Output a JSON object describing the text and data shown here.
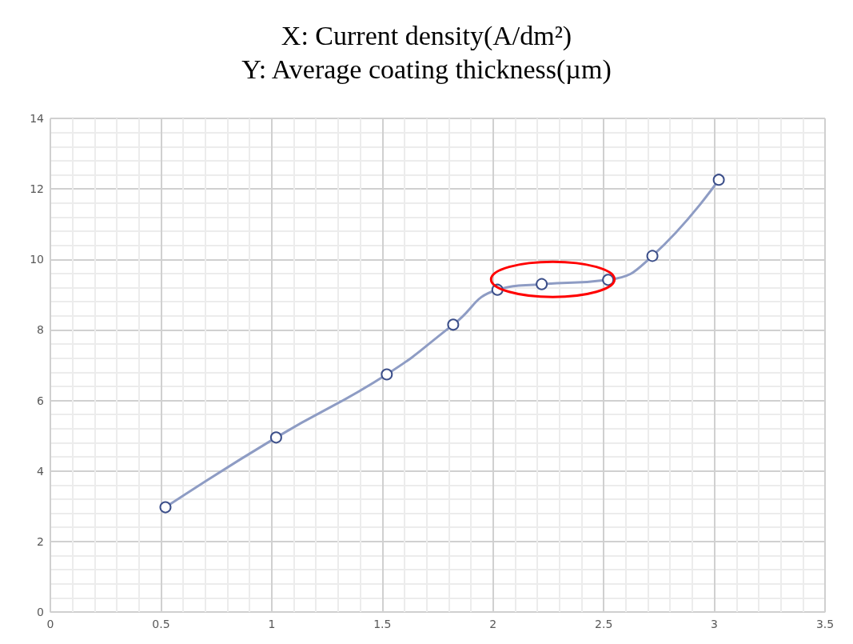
{
  "chart_data": {
    "type": "line",
    "title": "X: Current density(A/dm²)",
    "subtitle": "Y: Average coating thickness(µm)",
    "x": [
      0.52,
      1.02,
      1.52,
      1.82,
      2.02,
      2.22,
      2.52,
      2.72,
      3.02
    ],
    "series": [
      {
        "color": "#8e9cc4",
        "values": [
          2.97,
          4.95,
          6.74,
          8.15,
          9.14,
          9.3,
          9.42,
          10.1,
          12.26
        ]
      }
    ],
    "xlim": [
      0,
      3.5
    ],
    "xticks": [
      0,
      0.5,
      1,
      1.5,
      2,
      2.5,
      3,
      3.5
    ],
    "ylim": [
      0,
      14
    ],
    "yticks": [
      0,
      2,
      4,
      6,
      8,
      10,
      12,
      14
    ],
    "grid": true,
    "marker": "circle",
    "line_style": "solid"
  }
}
